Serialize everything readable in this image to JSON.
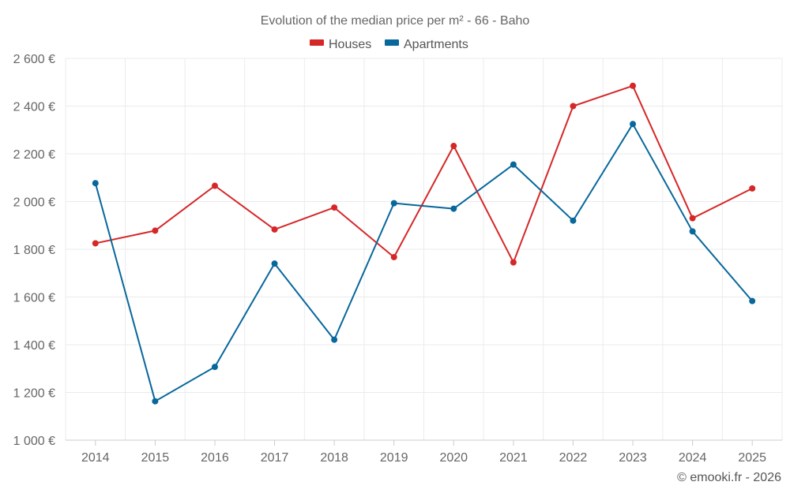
{
  "chart_data": {
    "type": "line",
    "title": "Evolution of the median price per m² - 66 - Baho",
    "categories": [
      "2014",
      "2015",
      "2016",
      "2017",
      "2018",
      "2019",
      "2020",
      "2021",
      "2022",
      "2023",
      "2024",
      "2025"
    ],
    "series": [
      {
        "name": "Houses",
        "color": "#d62728",
        "values": [
          1825,
          1878,
          2066,
          1883,
          1975,
          1767,
          2233,
          1745,
          2400,
          2485,
          1930,
          2055
        ]
      },
      {
        "name": "Apartments",
        "color": "#08679b",
        "values": [
          2077,
          1163,
          1307,
          1740,
          1421,
          1993,
          1970,
          2155,
          1920,
          2325,
          1875,
          1583
        ]
      }
    ],
    "ylim": [
      1000,
      2600
    ],
    "yticks": [
      1000,
      1200,
      1400,
      1600,
      1800,
      2000,
      2200,
      2400,
      2600
    ],
    "ytick_labels": [
      "1 000 €",
      "1 200 €",
      "1 400 €",
      "1 600 €",
      "1 800 €",
      "2 000 €",
      "2 200 €",
      "2 400 €",
      "2 600 €"
    ],
    "xlabel": "",
    "ylabel": "",
    "grid": true,
    "legend_position": "top-center"
  },
  "credit": "© emooki.fr - 2026"
}
